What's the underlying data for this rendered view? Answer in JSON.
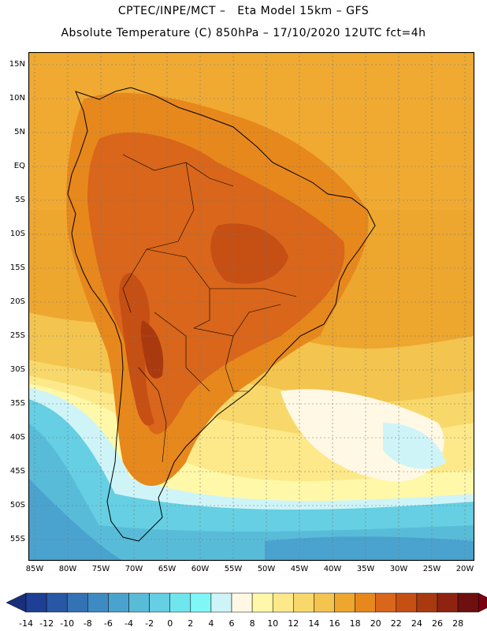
{
  "title_line1": "CPTEC/INPE/MCT –   Eta Model 15km – GFS",
  "title_line2": "Absolute Temperature (C) 850hPa – 17/10/2020 12UTC fct=4h",
  "lat_labels": [
    "15N",
    "10N",
    "5N",
    "EQ",
    "5S",
    "10S",
    "15S",
    "20S",
    "25S",
    "30S",
    "35S",
    "40S",
    "45S",
    "50S",
    "55S"
  ],
  "lon_labels": [
    "85W",
    "80W",
    "75W",
    "70W",
    "65W",
    "60W",
    "55W",
    "50W",
    "45W",
    "40W",
    "35W",
    "30W",
    "25W",
    "20W"
  ],
  "colorbar": {
    "labels": [
      "-14",
      "-12",
      "-10",
      "-8",
      "-6",
      "-4",
      "-2",
      "0",
      "2",
      "4",
      "6",
      "8",
      "10",
      "12",
      "14",
      "16",
      "18",
      "20",
      "22",
      "24",
      "26",
      "28"
    ],
    "colors": [
      "#1e3f96",
      "#2858a5",
      "#3372b4",
      "#3d8bc2",
      "#4aa3cf",
      "#58bcd9",
      "#66cfe3",
      "#6fe6ee",
      "#7ff7f7",
      "#cff4f8",
      "#fff8e4",
      "#fff8a8",
      "#fde98a",
      "#f8d86a",
      "#f3c44e",
      "#eda62e",
      "#e7881c",
      "#d9661a",
      "#c64f14",
      "#a93a10",
      "#8e2410",
      "#6e1010"
    ],
    "low_color": "#1a2f7a",
    "high_color": "#7a0010"
  }
}
